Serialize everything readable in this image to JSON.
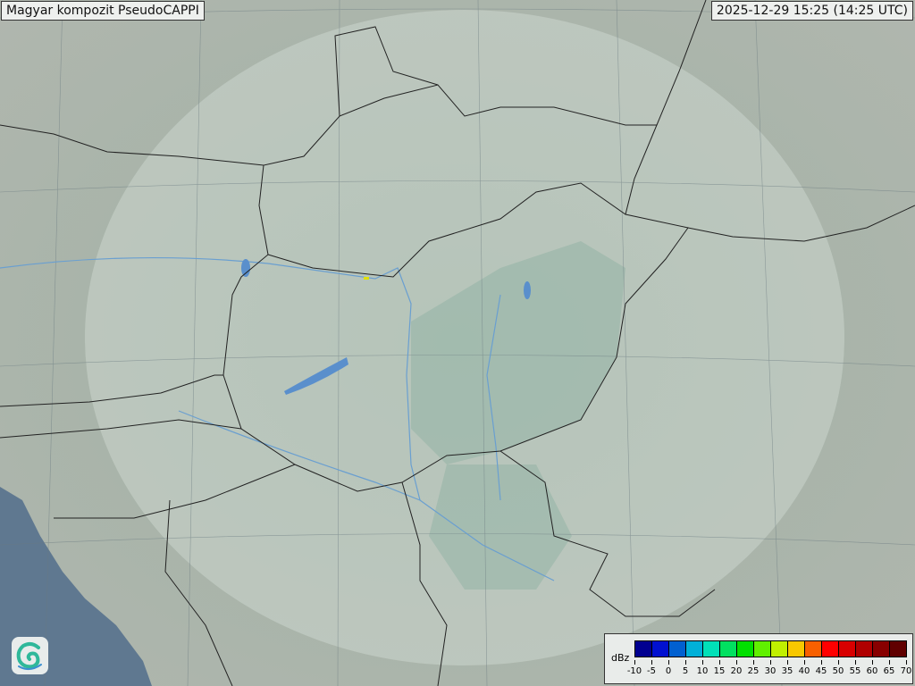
{
  "title": "Magyar kompozit  PseudoCAPPI",
  "timestamp": "2025-12-29 15:25 (14:25 UTC)",
  "legend": {
    "unit": "dBz",
    "ticks": [
      "-10",
      "-5",
      "0",
      "5",
      "10",
      "15",
      "20",
      "25",
      "30",
      "35",
      "40",
      "45",
      "50",
      "55",
      "60",
      "65",
      "70"
    ],
    "colors": [
      "#000090",
      "#0010d0",
      "#0060d0",
      "#00b0d8",
      "#00e0b8",
      "#00e060",
      "#00e000",
      "#60f000",
      "#c0f000",
      "#f8c800",
      "#f86000",
      "#ff0000",
      "#d80000",
      "#b00000",
      "#880000",
      "#600000"
    ]
  },
  "map": {
    "land_color": "#a7b3ab",
    "sea_color": "#5f7890",
    "radar_coverage_color": "#dfe8e2",
    "border_color": "#222222",
    "river_color": "#6a9fd0",
    "lake_color": "#5a8fcc",
    "echo_color": "#e0e000"
  },
  "logo": {
    "icon": "swirl-logo-icon"
  }
}
